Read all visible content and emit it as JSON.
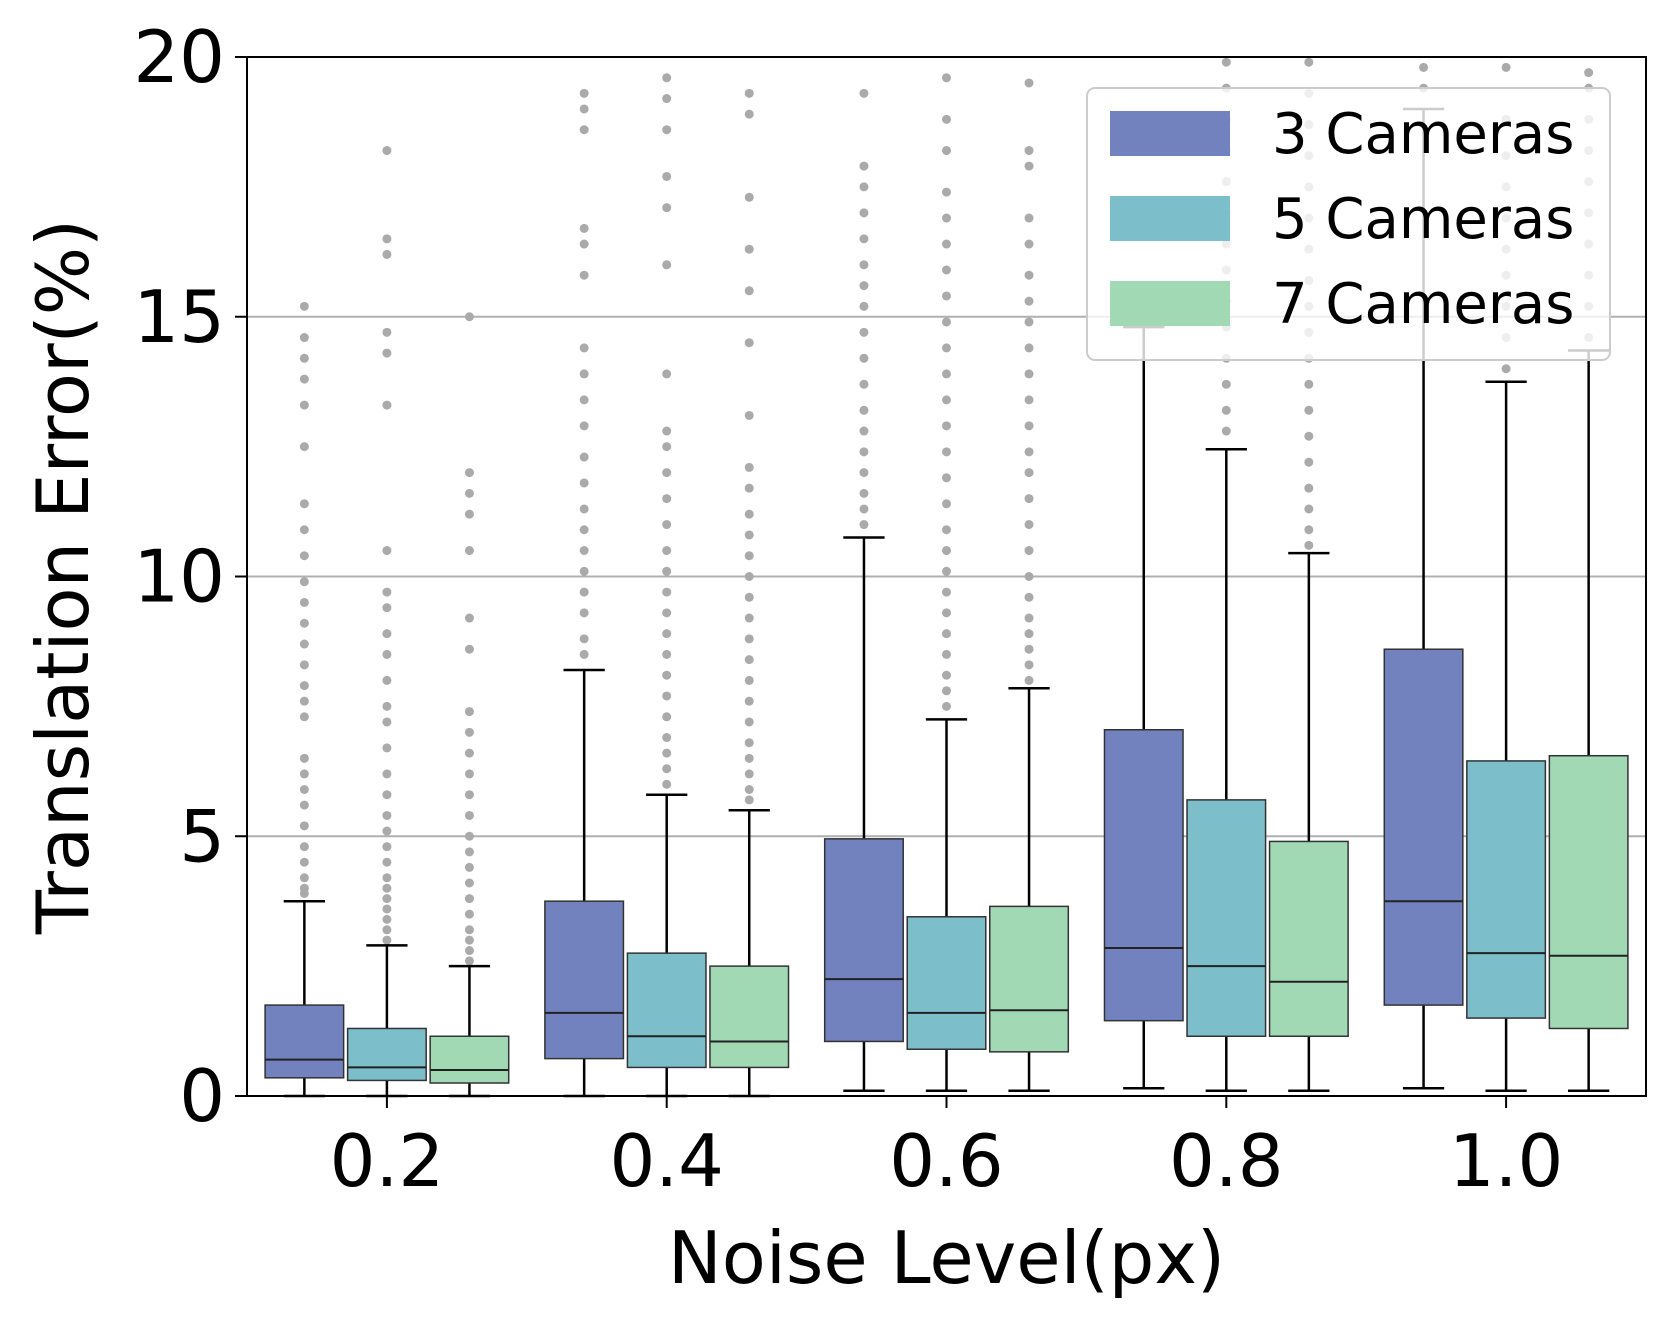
{
  "chart_data": {
    "type": "boxplot",
    "title": "",
    "xlabel": "Noise Level(px)",
    "ylabel": "Translation Error(%)",
    "ylim": [
      0,
      20
    ],
    "yticks": [
      "0",
      "5",
      "10",
      "15",
      "20"
    ],
    "categories": [
      "0.2",
      "0.4",
      "0.6",
      "0.8",
      "1.0"
    ],
    "grid": "horizontal",
    "legend_position": "top-right",
    "series": [
      {
        "name": "3 Cameras",
        "color": "#7282bf",
        "boxes": [
          {
            "whislo": 0.0,
            "q1": 0.35,
            "med": 0.7,
            "q3": 1.75,
            "whishi": 3.75
          },
          {
            "whislo": 0.0,
            "q1": 0.72,
            "med": 1.6,
            "q3": 3.75,
            "whishi": 8.2
          },
          {
            "whislo": 0.1,
            "q1": 1.05,
            "med": 2.25,
            "q3": 4.95,
            "whishi": 10.75
          },
          {
            "whislo": 0.15,
            "q1": 1.45,
            "med": 2.85,
            "q3": 7.05,
            "whishi": 14.8
          },
          {
            "whislo": 0.15,
            "q1": 1.75,
            "med": 3.75,
            "q3": 8.6,
            "whishi": 19.0
          }
        ],
        "fliers": [
          [
            3.9,
            4.0,
            4.2,
            4.5,
            4.8,
            5.2,
            5.6,
            5.9,
            6.2,
            6.5,
            7.3,
            7.6,
            7.9,
            8.3,
            8.7,
            9.1,
            9.5,
            9.9,
            10.4,
            10.9,
            11.4,
            12.5,
            13.3,
            13.8,
            14.2,
            14.6,
            15.2
          ],
          [
            8.5,
            8.8,
            9.3,
            9.7,
            10.1,
            10.5,
            10.9,
            11.3,
            11.8,
            12.3,
            12.9,
            13.4,
            13.9,
            14.4,
            15.8,
            16.4,
            16.7,
            18.6,
            19.0,
            19.3
          ],
          [
            11.0,
            11.3,
            11.6,
            12.0,
            12.4,
            12.8,
            13.2,
            13.7,
            14.2,
            14.7,
            15.2,
            15.6,
            16.0,
            16.5,
            17.0,
            17.5,
            17.9,
            19.3
          ],
          [],
          [
            19.4,
            19.8
          ]
        ]
      },
      {
        "name": "5 Cameras",
        "color": "#7cbfcb",
        "boxes": [
          {
            "whislo": 0.0,
            "q1": 0.3,
            "med": 0.55,
            "q3": 1.3,
            "whishi": 2.9
          },
          {
            "whislo": 0.0,
            "q1": 0.55,
            "med": 1.15,
            "q3": 2.75,
            "whishi": 5.8
          },
          {
            "whislo": 0.1,
            "q1": 0.9,
            "med": 1.6,
            "q3": 3.45,
            "whishi": 7.25
          },
          {
            "whislo": 0.1,
            "q1": 1.15,
            "med": 2.5,
            "q3": 5.7,
            "whishi": 12.45
          },
          {
            "whislo": 0.1,
            "q1": 1.5,
            "med": 2.75,
            "q3": 6.45,
            "whishi": 13.75
          }
        ],
        "fliers": [
          [
            3.0,
            3.2,
            3.4,
            3.6,
            3.8,
            4.0,
            4.2,
            4.5,
            4.8,
            5.1,
            5.4,
            5.8,
            6.2,
            6.7,
            7.2,
            7.5,
            8.0,
            8.5,
            8.9,
            9.4,
            9.7,
            10.5,
            13.3,
            14.3,
            14.7,
            16.2,
            16.5,
            18.2
          ],
          [
            6.0,
            6.3,
            6.6,
            6.9,
            7.3,
            7.7,
            8.1,
            8.5,
            8.9,
            9.3,
            9.7,
            10.1,
            10.5,
            11.0,
            11.5,
            12.0,
            12.5,
            12.8,
            13.9,
            16.0,
            17.1,
            17.7,
            18.6,
            19.2,
            19.6
          ],
          [
            7.5,
            7.8,
            8.1,
            8.5,
            8.9,
            9.3,
            9.7,
            10.1,
            10.5,
            10.9,
            11.4,
            11.9,
            12.4,
            12.9,
            13.4,
            13.9,
            14.4,
            14.9,
            15.4,
            15.9,
            16.4,
            16.9,
            17.4,
            18.2,
            18.8,
            19.6
          ],
          [
            12.8,
            13.2,
            13.7,
            14.2,
            14.8,
            15.3,
            15.9,
            16.4,
            17.0,
            17.6,
            18.2,
            18.8,
            19.4,
            19.9
          ],
          [
            14.0,
            14.6,
            15.2,
            15.8,
            16.3,
            16.9,
            17.5,
            18.1,
            18.8,
            19.8
          ]
        ]
      },
      {
        "name": "7 Cameras",
        "color": "#a2d9b5",
        "boxes": [
          {
            "whislo": 0.0,
            "q1": 0.25,
            "med": 0.5,
            "q3": 1.15,
            "whishi": 2.5
          },
          {
            "whislo": 0.0,
            "q1": 0.55,
            "med": 1.05,
            "q3": 2.5,
            "whishi": 5.5
          },
          {
            "whislo": 0.1,
            "q1": 0.85,
            "med": 1.65,
            "q3": 3.65,
            "whishi": 7.85
          },
          {
            "whislo": 0.1,
            "q1": 1.15,
            "med": 2.2,
            "q3": 4.9,
            "whishi": 10.45
          },
          {
            "whislo": 0.1,
            "q1": 1.3,
            "med": 2.7,
            "q3": 6.55,
            "whishi": 14.35
          }
        ],
        "fliers": [
          [
            2.6,
            2.8,
            3.0,
            3.2,
            3.5,
            3.8,
            4.1,
            4.4,
            4.7,
            5.0,
            5.4,
            5.8,
            6.2,
            6.6,
            7.0,
            7.4,
            8.6,
            9.2,
            10.5,
            11.2,
            11.6,
            12.0,
            15.0
          ],
          [
            5.7,
            5.9,
            6.2,
            6.5,
            6.8,
            7.2,
            7.6,
            8.0,
            8.4,
            8.8,
            9.2,
            9.6,
            10.0,
            10.4,
            10.8,
            11.2,
            11.7,
            12.1,
            13.1,
            14.5,
            15.5,
            16.3,
            17.3,
            18.9,
            19.3
          ],
          [
            8.0,
            8.3,
            8.6,
            8.9,
            9.2,
            9.6,
            10.0,
            10.5,
            11.0,
            11.5,
            12.0,
            12.4,
            12.9,
            13.4,
            13.9,
            14.4,
            14.9,
            15.3,
            15.8,
            16.4,
            16.9,
            17.9,
            18.2,
            19.5
          ],
          [
            10.6,
            10.9,
            11.3,
            11.7,
            12.2,
            12.7,
            13.2,
            13.7,
            14.2,
            14.7,
            15.2,
            15.7,
            16.3,
            16.9,
            17.5,
            18.1,
            18.7,
            19.3,
            19.9
          ],
          [
            14.6,
            15.2,
            15.8,
            16.4,
            17.0,
            17.6,
            18.2,
            18.8,
            19.4,
            19.7
          ]
        ]
      }
    ],
    "legend": [
      "3 Cameras",
      "5 Cameras",
      "7 Cameras"
    ],
    "colors": {
      "grid": "#b0b0b0",
      "flier": "#aaaaaa",
      "axis": "#000000"
    }
  }
}
